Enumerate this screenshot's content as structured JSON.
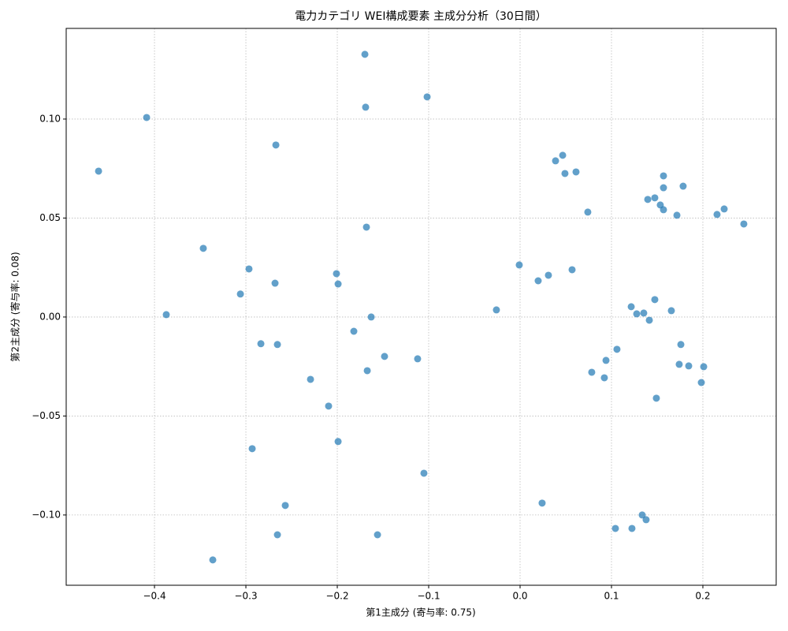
{
  "chart_data": {
    "type": "scatter",
    "title": "電力カテゴリ WEI構成要素 主成分分析（30日間）",
    "x_label": "第1主成分 (寄与率: 0.75)",
    "y_label": "第2主成分 (寄与率: 0.08)",
    "xlim": [
      -0.4966,
      0.2802
    ],
    "ylim": [
      -0.1355,
      0.1458
    ],
    "xticks": [
      {
        "value": -0.4,
        "label": "−0.4"
      },
      {
        "value": -0.3,
        "label": "−0.3"
      },
      {
        "value": -0.2,
        "label": "−0.2"
      },
      {
        "value": -0.1,
        "label": "−0.1"
      },
      {
        "value": 0.0,
        "label": "0.0"
      },
      0.1,
      0.2
    ],
    "yticks": [
      {
        "value": -0.1,
        "label": "−0.10"
      },
      {
        "value": -0.05,
        "label": "−0.05"
      },
      {
        "value": 0.0,
        "label": "0.00"
      },
      {
        "value": 0.05,
        "label": "0.05"
      },
      {
        "value": 0.1,
        "label": "0.10"
      }
    ],
    "grid": true,
    "series": [
      {
        "color": "#1f77b4",
        "x": [
          -0.1698,
          -0.1017,
          -0.169,
          -0.4086,
          -0.2672,
          -0.4612,
          -0.1681,
          -0.3466,
          -0.2966,
          -0.2009,
          -0.2681,
          -0.1991,
          -0.306,
          -0.3871,
          -0.1629,
          -0.1819,
          -0.2836,
          -0.2655,
          -0.1483,
          -0.1121,
          -0.1672,
          -0.2293,
          -0.2095,
          -0.1991,
          -0.2931,
          -0.1052,
          -0.2569,
          -0.2655,
          -0.156,
          -0.3362,
          -0.0259,
          -0.0009,
          0.0198,
          0.031,
          0.0569,
          0.0741,
          0.0388,
          0.0466,
          0.0491,
          0.0612,
          0.0241,
          0.0784,
          0.094,
          0.0922,
          0.106,
          0.1043,
          0.1216,
          0.1224,
          0.1276,
          0.1353,
          0.1336,
          0.1379,
          0.1414,
          0.1397,
          0.1474,
          0.1474,
          0.1569,
          0.1569,
          0.1534,
          0.1569,
          0.1655,
          0.1716,
          0.1784,
          0.1491,
          0.1759,
          0.1741,
          0.1845,
          0.2009,
          0.1983,
          0.2155,
          0.2233,
          0.2448
        ],
        "values": [
          0.1327,
          0.1112,
          0.106,
          0.1008,
          0.0869,
          0.0737,
          0.0454,
          0.0347,
          0.0243,
          0.0219,
          0.0171,
          0.0167,
          0.0116,
          0.0012,
          0.0,
          -0.0072,
          -0.0135,
          -0.0139,
          -0.0199,
          -0.0211,
          -0.0271,
          -0.0315,
          -0.045,
          -0.0629,
          -0.0665,
          -0.0789,
          -0.0952,
          -0.11,
          -0.11,
          -0.1227,
          0.0036,
          0.0263,
          0.0183,
          0.0211,
          0.0239,
          0.053,
          0.0789,
          0.0817,
          0.0725,
          0.0733,
          -0.094,
          -0.0279,
          -0.0219,
          -0.0307,
          -0.0163,
          -0.1068,
          0.0052,
          -0.1068,
          0.0016,
          0.002,
          -0.1,
          -0.1024,
          -0.0016,
          0.0594,
          0.0602,
          0.0088,
          0.0713,
          0.0653,
          0.0566,
          0.0542,
          0.0032,
          0.0514,
          0.0661,
          -0.041,
          -0.0139,
          -0.0239,
          -0.0247,
          -0.0251,
          -0.0331,
          0.0518,
          0.0546,
          0.047
        ]
      }
    ]
  }
}
